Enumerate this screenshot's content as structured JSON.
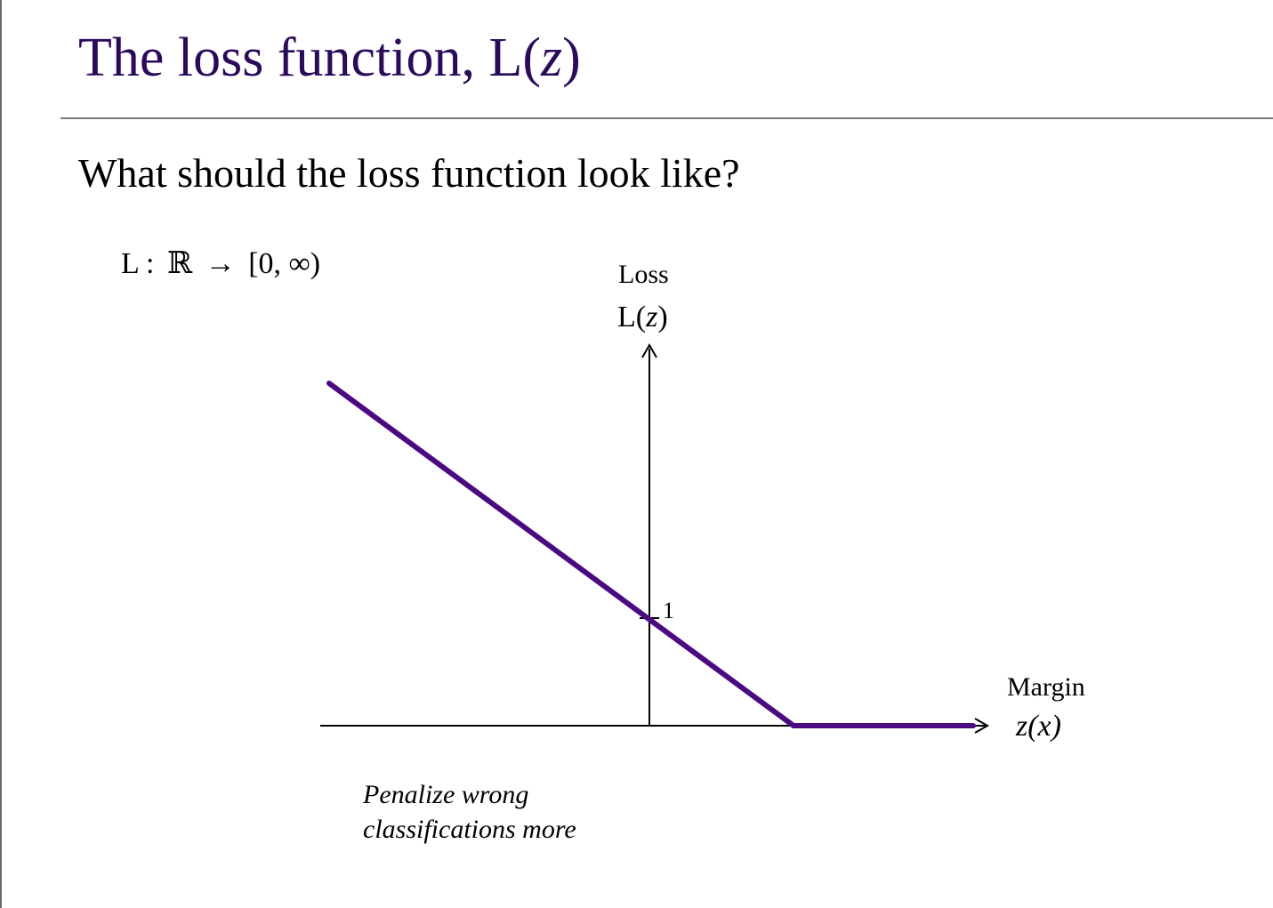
{
  "slide": {
    "title_main": "The loss function, L(",
    "title_var": "z",
    "title_close": ")",
    "question": "What should the loss function look like?",
    "signature": {
      "name": "L :",
      "domain": "ℝ",
      "arrow": "→",
      "codomain": "[0, ∞)"
    }
  },
  "diagram": {
    "y_axis_label": "Loss",
    "y_axis_symbol_prefix": "L(",
    "y_axis_symbol_var": "z",
    "y_axis_symbol_suffix": ")",
    "x_axis_label": "Margin",
    "x_axis_symbol": "z(x)",
    "tick_label": "1",
    "annotation_line1": "Penalize wrong",
    "annotation_line2": "classifications more",
    "curve_color": "#4b0a82",
    "axis_color": "#000000",
    "title_color": "#2b0a5e"
  }
}
